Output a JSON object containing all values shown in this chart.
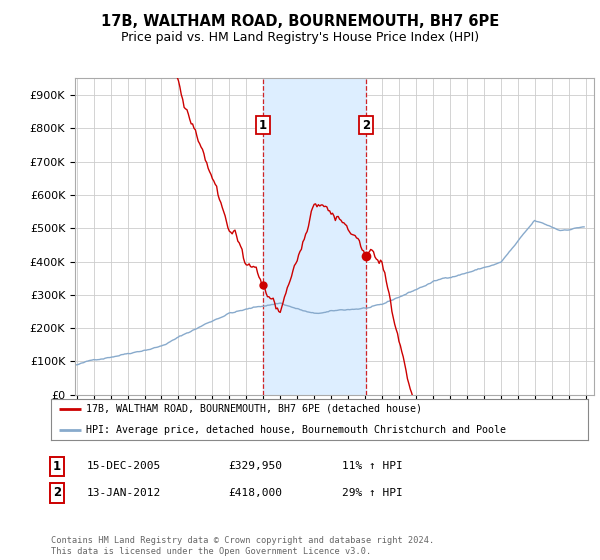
{
  "title": "17B, WALTHAM ROAD, BOURNEMOUTH, BH7 6PE",
  "subtitle": "Price paid vs. HM Land Registry's House Price Index (HPI)",
  "ylim": [
    0,
    950000
  ],
  "yticks": [
    0,
    100000,
    200000,
    300000,
    400000,
    500000,
    600000,
    700000,
    800000,
    900000
  ],
  "ytick_labels": [
    "£0",
    "£100K",
    "£200K",
    "£300K",
    "£400K",
    "£500K",
    "£600K",
    "£700K",
    "£800K",
    "£900K"
  ],
  "xmin": 1994.9,
  "xmax": 2025.5,
  "sale1_x": 2005.958,
  "sale1_y": 329950,
  "sale2_x": 2012.042,
  "sale2_y": 418000,
  "red_line_color": "#cc0000",
  "blue_line_color": "#88aacc",
  "shade_color": "#ddeeff",
  "vline_color": "#cc0000",
  "marker_color": "#cc0000",
  "legend_red_label": "17B, WALTHAM ROAD, BOURNEMOUTH, BH7 6PE (detached house)",
  "legend_blue_label": "HPI: Average price, detached house, Bournemouth Christchurch and Poole",
  "table_row1": [
    "1",
    "15-DEC-2005",
    "£329,950",
    "11% ↑ HPI"
  ],
  "table_row2": [
    "2",
    "13-JAN-2012",
    "£418,000",
    "29% ↑ HPI"
  ],
  "footer": "Contains HM Land Registry data © Crown copyright and database right 2024.\nThis data is licensed under the Open Government Licence v3.0.",
  "title_fontsize": 10.5,
  "subtitle_fontsize": 9,
  "background_color": "#ffffff"
}
